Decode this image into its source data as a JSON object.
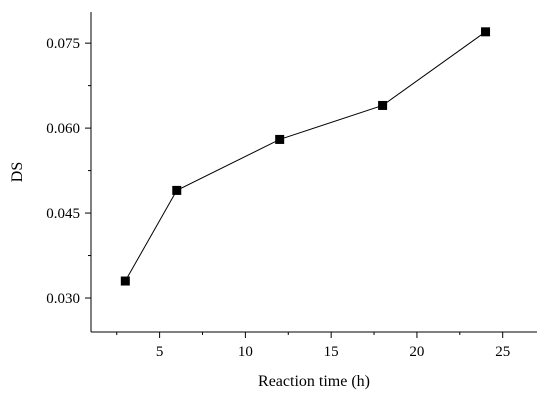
{
  "chart_data": {
    "type": "line",
    "xlabel": "Reaction time (h)",
    "ylabel": "DS",
    "xlim": [
      1,
      27
    ],
    "ylim": [
      0.024,
      0.0805
    ],
    "x_ticks": [
      5,
      10,
      15,
      20,
      25
    ],
    "x_tick_labels": [
      "5",
      "10",
      "15",
      "20",
      "25"
    ],
    "y_ticks": [
      0.03,
      0.045,
      0.06,
      0.075
    ],
    "y_tick_labels": [
      "0.030",
      "0.045",
      "0.060",
      "0.075"
    ],
    "grid": false,
    "marker": "square",
    "series": [
      {
        "x": [
          3,
          6,
          12,
          18,
          24
        ],
        "y": [
          0.033,
          0.049,
          0.058,
          0.064,
          0.077
        ]
      }
    ]
  },
  "colors": {
    "line": "#000000",
    "marker": "#000000",
    "axis": "#000000"
  }
}
